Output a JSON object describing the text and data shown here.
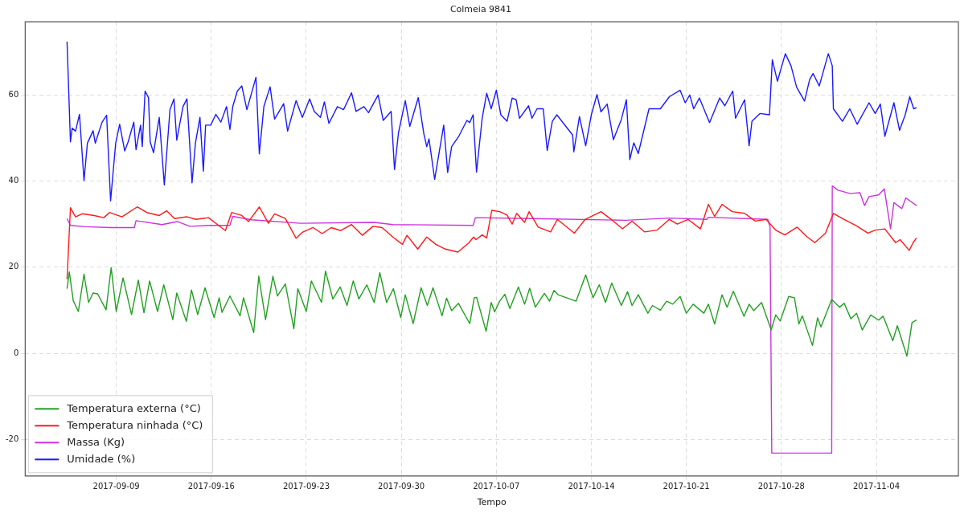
{
  "chart_data": {
    "type": "line",
    "title": "Colmeia 9841",
    "xlabel": "Tempo",
    "xlim": [
      "2017-09-02T07:00",
      "2017-11-10T01:00"
    ],
    "ylim": [
      -28.5,
      77
    ],
    "xticks": [
      "2017-09-09",
      "2017-09-16",
      "2017-09-23",
      "2017-09-30",
      "2017-10-07",
      "2017-10-14",
      "2017-10-21",
      "2017-10-28",
      "2017-11-04"
    ],
    "yticks": [
      -20,
      0,
      20,
      40,
      60
    ],
    "grid": true,
    "legend": "bottom left",
    "marker": "none",
    "line_style": "solid",
    "series": [
      {
        "name": "Temperatura externa (°C)",
        "color": "#22a022",
        "x": [
          "2017-09-05T09:00",
          "2017-09-05T13:00",
          "2017-09-05T20:00",
          "2017-09-06T05:00",
          "2017-09-06T15:00",
          "2017-09-06T23:00",
          "2017-09-07T07:00",
          "2017-09-07T15:00",
          "2017-09-08T06:00",
          "2017-09-08T15:00",
          "2017-09-09T00:00",
          "2017-09-09T12:00",
          "2017-09-10T03:00",
          "2017-09-10T15:00",
          "2017-09-11T01:00",
          "2017-09-11T11:00",
          "2017-09-12T01:00",
          "2017-09-12T12:00",
          "2017-09-13T04:00",
          "2017-09-13T11:00",
          "2017-09-14T04:00",
          "2017-09-14T13:00",
          "2017-09-15T00:00",
          "2017-09-15T13:00",
          "2017-09-16T05:00",
          "2017-09-16T14:00",
          "2017-09-16T19:00",
          "2017-09-17T09:00",
          "2017-09-18T03:00",
          "2017-09-18T09:00",
          "2017-09-19T03:00",
          "2017-09-19T12:00",
          "2017-09-20T00:00",
          "2017-09-20T13:00",
          "2017-09-20T21:00",
          "2017-09-21T11:00",
          "2017-09-22T02:00",
          "2017-09-22T09:00",
          "2017-09-23T00:00",
          "2017-09-23T09:00",
          "2017-09-24T03:00",
          "2017-09-24T10:00",
          "2017-09-24T23:00",
          "2017-09-25T12:00",
          "2017-09-26T00:00",
          "2017-09-26T11:00",
          "2017-09-26T21:00",
          "2017-09-27T11:00",
          "2017-09-28T00:00",
          "2017-09-28T10:00",
          "2017-09-28T22:00",
          "2017-09-29T10:00",
          "2017-09-29T23:00",
          "2017-09-30T07:00",
          "2017-09-30T21:00",
          "2017-10-01T11:00",
          "2017-10-01T22:00",
          "2017-10-02T08:00",
          "2017-10-03T00:00",
          "2017-10-03T08:00",
          "2017-10-03T17:00",
          "2017-10-04T05:00",
          "2017-10-05T01:00",
          "2017-10-05T09:00",
          "2017-10-05T13:00",
          "2017-10-06T06:00",
          "2017-10-06T15:00",
          "2017-10-06T21:00",
          "2017-10-07T06:00",
          "2017-10-07T15:00",
          "2017-10-08T00:00",
          "2017-10-08T15:00",
          "2017-10-09T02:00",
          "2017-10-09T11:00",
          "2017-10-09T21:00",
          "2017-10-10T13:00",
          "2017-10-10T22:00",
          "2017-10-11T06:00",
          "2017-10-11T13:00",
          "2017-10-12T21:00",
          "2017-10-13T14:00",
          "2017-10-14T03:00",
          "2017-10-14T14:00",
          "2017-10-15T01:00",
          "2017-10-15T12:00",
          "2017-10-16T05:00",
          "2017-10-16T16:00",
          "2017-10-17T00:00",
          "2017-10-17T11:00",
          "2017-10-18T04:00",
          "2017-10-18T12:00",
          "2017-10-19T02:00",
          "2017-10-19T13:00",
          "2017-10-20T00:00",
          "2017-10-20T13:00",
          "2017-10-21T00:00",
          "2017-10-21T12:00",
          "2017-10-22T07:00",
          "2017-10-22T15:00",
          "2017-10-23T02:00",
          "2017-10-23T15:00",
          "2017-10-24T00:00",
          "2017-10-24T11:00",
          "2017-10-25T06:00",
          "2017-10-25T15:00",
          "2017-10-25T23:00",
          "2017-10-26T13:00",
          "2017-10-27T06:00",
          "2017-10-27T14:00",
          "2017-10-27T22:00",
          "2017-10-28T13:00",
          "2017-10-28T23:00",
          "2017-10-29T07:00",
          "2017-10-29T13:00",
          "2017-10-30T07:00",
          "2017-10-30T16:00",
          "2017-10-30T22:00",
          "2017-10-31T17:00",
          "2017-11-01T07:00",
          "2017-11-01T15:00",
          "2017-11-02T03:00",
          "2017-11-02T13:00",
          "2017-11-02T23:00",
          "2017-11-03T14:00",
          "2017-11-04T04:00",
          "2017-11-04T12:00",
          "2017-11-05T05:00",
          "2017-11-05T13:00",
          "2017-11-06T06:00",
          "2017-11-06T15:00",
          "2017-11-06T23:00"
        ],
        "values": [
          15.0,
          18.9,
          12.2,
          9.7,
          18.4,
          11.8,
          14.0,
          13.8,
          10.1,
          19.9,
          9.7,
          17.5,
          9.0,
          17.0,
          9.4,
          16.8,
          9.7,
          15.9,
          7.8,
          14.0,
          7.4,
          14.7,
          9.0,
          15.2,
          8.3,
          12.9,
          9.5,
          13.3,
          8.7,
          12.9,
          4.8,
          17.9,
          7.8,
          17.9,
          13.3,
          16.1,
          5.7,
          15.0,
          9.7,
          16.8,
          11.8,
          19.1,
          12.6,
          15.4,
          11.1,
          16.8,
          12.6,
          15.9,
          11.8,
          18.7,
          11.8,
          15.0,
          8.3,
          13.6,
          6.9,
          15.2,
          11.1,
          15.2,
          8.7,
          12.8,
          9.9,
          11.6,
          6.9,
          12.9,
          13.0,
          5.1,
          11.8,
          9.6,
          12.1,
          13.7,
          10.4,
          15.4,
          11.4,
          15.1,
          10.7,
          13.9,
          12.1,
          14.6,
          13.6,
          12.1,
          18.2,
          12.9,
          15.9,
          11.8,
          16.3,
          11.1,
          14.3,
          11.1,
          13.6,
          9.3,
          11.1,
          10.0,
          12.1,
          11.4,
          13.2,
          9.3,
          11.4,
          9.3,
          11.4,
          6.8,
          13.6,
          10.7,
          14.4,
          8.6,
          11.4,
          9.9,
          11.8,
          5.4,
          8.9,
          7.5,
          13.2,
          12.9,
          6.8,
          8.7,
          1.8,
          8.2,
          6.1,
          12.5,
          10.7,
          11.6,
          8.0,
          9.3,
          5.4,
          8.9,
          7.7,
          8.6,
          2.9,
          6.4,
          -0.7,
          7.1,
          7.7
        ]
      },
      {
        "name": "Temperatura ninhada (°C)",
        "color": "#ff1a1a",
        "x": [
          "2017-09-05T09:00",
          "2017-09-05T15:00",
          "2017-09-06T00:00",
          "2017-09-06T12:00",
          "2017-09-07T09:00",
          "2017-09-08T02:00",
          "2017-09-08T12:00",
          "2017-09-09T10:00",
          "2017-09-10T13:00",
          "2017-09-11T06:00",
          "2017-09-12T04:00",
          "2017-09-12T17:00",
          "2017-09-13T07:00",
          "2017-09-14T05:00",
          "2017-09-14T21:00",
          "2017-09-15T19:00",
          "2017-09-16T11:00",
          "2017-09-17T01:00",
          "2017-09-17T12:00",
          "2017-09-18T06:00",
          "2017-09-18T18:00",
          "2017-09-19T13:00",
          "2017-09-20T05:00",
          "2017-09-20T16:00",
          "2017-09-21T11:00",
          "2017-09-22T06:00",
          "2017-09-22T17:00",
          "2017-09-23T12:00",
          "2017-09-24T04:00",
          "2017-09-24T20:00",
          "2017-09-25T13:00",
          "2017-09-26T08:00",
          "2017-09-27T03:00",
          "2017-09-27T22:00",
          "2017-09-28T14:00",
          "2017-09-29T09:00",
          "2017-09-30T02:00",
          "2017-09-30T10:00",
          "2017-10-01T05:00",
          "2017-10-01T21:00",
          "2017-10-02T13:00",
          "2017-10-03T06:00",
          "2017-10-04T04:00",
          "2017-10-04T23:00",
          "2017-10-05T08:00",
          "2017-10-05T12:00",
          "2017-10-05T23:00",
          "2017-10-06T07:00",
          "2017-10-06T16:00",
          "2017-10-07T06:00",
          "2017-10-07T19:00",
          "2017-10-08T04:00",
          "2017-10-08T12:00",
          "2017-10-09T02:00",
          "2017-10-09T10:00",
          "2017-10-10T02:00",
          "2017-10-11T00:00",
          "2017-10-11T12:00",
          "2017-10-12T18:00",
          "2017-10-13T13:00",
          "2017-10-14T17:00",
          "2017-10-15T15:00",
          "2017-10-16T07:00",
          "2017-10-17T00:00",
          "2017-10-17T22:00",
          "2017-10-18T20:00",
          "2017-10-19T18:00",
          "2017-10-20T08:00",
          "2017-10-21T03:00",
          "2017-10-22T01:00",
          "2017-10-22T15:00",
          "2017-10-23T02:00",
          "2017-10-23T15:00",
          "2017-10-24T09:00",
          "2017-10-25T07:00",
          "2017-10-26T02:00",
          "2017-10-26T21:00",
          "2017-10-27T14:00",
          "2017-10-28T06:00",
          "2017-10-29T04:00",
          "2017-10-29T21:00",
          "2017-10-30T11:00",
          "2017-10-31T06:00",
          "2017-10-31T20:00",
          "2017-11-01T15:00",
          "2017-11-02T13:00",
          "2017-11-03T09:00",
          "2017-11-03T22:00",
          "2017-11-04T15:00",
          "2017-11-05T10:00",
          "2017-11-05T18:00",
          "2017-11-06T10:00",
          "2017-11-06T17:00",
          "2017-11-06T23:00"
        ],
        "values": [
          17.2,
          33.8,
          31.7,
          32.4,
          32.0,
          31.5,
          32.7,
          31.7,
          34.0,
          32.7,
          32.0,
          33.1,
          31.3,
          31.7,
          31.1,
          31.5,
          29.9,
          28.5,
          32.7,
          32.0,
          30.6,
          34.0,
          30.2,
          32.4,
          31.3,
          26.7,
          28.1,
          29.2,
          27.8,
          29.2,
          28.5,
          29.9,
          27.4,
          29.5,
          29.2,
          27.0,
          25.3,
          27.4,
          24.2,
          27.0,
          25.3,
          24.2,
          23.5,
          25.6,
          27.0,
          26.4,
          27.5,
          26.8,
          33.2,
          32.9,
          32.1,
          30.0,
          32.5,
          30.4,
          32.9,
          29.3,
          28.2,
          31.1,
          27.9,
          31.1,
          32.9,
          30.7,
          28.9,
          30.7,
          28.2,
          28.6,
          31.1,
          30.0,
          31.1,
          28.9,
          34.6,
          31.8,
          34.6,
          32.9,
          32.5,
          30.7,
          31.1,
          28.6,
          27.5,
          29.3,
          27.1,
          25.7,
          27.9,
          32.5,
          31.1,
          29.6,
          27.9,
          28.6,
          28.9,
          25.7,
          26.4,
          23.9,
          25.7,
          26.8
        ]
      },
      {
        "name": "Massa (Kg)",
        "color": "#cc33dd",
        "x": [
          "2017-09-05T09:00",
          "2017-09-05T15:00",
          "2017-09-06T17:00",
          "2017-09-08T15:00",
          "2017-09-10T08:00",
          "2017-09-10T11:00",
          "2017-09-12T09:00",
          "2017-09-13T12:00",
          "2017-09-14T10:00",
          "2017-09-15T19:00",
          "2017-09-17T09:00",
          "2017-09-17T14:00",
          "2017-09-18T23:00",
          "2017-09-22T14:00",
          "2017-09-28T00:00",
          "2017-09-29T09:00",
          "2017-10-05T07:00",
          "2017-10-05T11:00",
          "2017-10-09T15:00",
          "2017-10-16T13:00",
          "2017-10-19T18:00",
          "2017-10-22T12:00",
          "2017-10-22T15:00",
          "2017-10-27T00:00",
          "2017-10-27T04:00",
          "2017-10-27T07:00",
          "2017-10-31T17:00",
          "2017-10-31T18:00",
          "2017-11-01T04:00",
          "2017-11-02T02:00",
          "2017-11-02T19:00",
          "2017-11-03T03:00",
          "2017-11-03T11:00",
          "2017-11-04T04:00",
          "2017-11-04T14:00",
          "2017-11-05T01:00",
          "2017-11-05T07:00",
          "2017-11-05T21:00",
          "2017-11-06T04:00",
          "2017-11-06T23:00"
        ],
        "values": [
          31.3,
          29.7,
          29.4,
          29.2,
          29.2,
          30.8,
          29.9,
          30.6,
          29.5,
          29.7,
          29.7,
          31.8,
          31.0,
          30.2,
          30.4,
          29.9,
          29.7,
          31.5,
          31.3,
          30.9,
          31.4,
          31.1,
          31.6,
          31.1,
          29.3,
          -23.2,
          -23.2,
          38.9,
          37.9,
          37.1,
          37.3,
          34.3,
          36.4,
          36.8,
          38.2,
          28.9,
          35.0,
          33.6,
          36.1,
          34.3
        ]
      },
      {
        "name": "Umidade (%)",
        "color": "#1a1aff",
        "x": [
          "2017-09-05T09:00",
          "2017-09-05T15:00",
          "2017-09-05T18:00",
          "2017-09-06T00:00",
          "2017-09-06T07:00",
          "2017-09-06T15:00",
          "2017-09-06T21:00",
          "2017-09-07T07:00",
          "2017-09-07T11:00",
          "2017-09-07T15:00",
          "2017-09-07T23:00",
          "2017-09-08T07:00",
          "2017-09-08T14:00",
          "2017-09-08T23:00",
          "2017-09-09T06:00",
          "2017-09-09T15:00",
          "2017-09-09T21:00",
          "2017-09-10T07:00",
          "2017-09-10T11:00",
          "2017-09-10T19:00",
          "2017-09-10T22:00",
          "2017-09-11T03:00",
          "2017-09-11T09:00",
          "2017-09-11T12:00",
          "2017-09-11T18:00",
          "2017-09-12T04:00",
          "2017-09-12T13:00",
          "2017-09-12T23:00",
          "2017-09-13T06:00",
          "2017-09-13T11:00",
          "2017-09-13T22:00",
          "2017-09-14T05:00",
          "2017-09-14T14:00",
          "2017-09-14T20:00",
          "2017-09-15T04:00",
          "2017-09-15T10:00",
          "2017-09-15T14:00",
          "2017-09-15T23:00",
          "2017-09-16T08:00",
          "2017-09-16T17:00",
          "2017-09-17T03:00",
          "2017-09-17T09:00",
          "2017-09-17T14:00",
          "2017-09-17T22:00",
          "2017-09-18T06:00",
          "2017-09-18T15:00",
          "2017-09-19T07:00",
          "2017-09-19T13:00",
          "2017-09-19T21:00",
          "2017-09-20T08:00",
          "2017-09-20T16:00",
          "2017-09-21T08:00",
          "2017-09-21T15:00",
          "2017-09-22T06:00",
          "2017-09-22T17:00",
          "2017-09-23T06:00",
          "2017-09-23T14:00",
          "2017-09-24T01:00",
          "2017-09-24T08:00",
          "2017-09-24T16:00",
          "2017-09-25T07:00",
          "2017-09-25T18:00",
          "2017-09-26T08:00",
          "2017-09-26T16:00",
          "2017-09-27T06:00",
          "2017-09-27T14:00",
          "2017-09-28T07:00",
          "2017-09-28T16:00",
          "2017-09-29T06:00",
          "2017-09-29T12:00",
          "2017-09-29T19:00",
          "2017-09-30T07:00",
          "2017-09-30T15:00",
          "2017-10-01T06:00",
          "2017-10-01T16:00",
          "2017-10-01T21:00",
          "2017-10-02T01:00",
          "2017-10-02T11:00",
          "2017-10-03T03:00",
          "2017-10-03T10:00",
          "2017-10-03T17:00",
          "2017-10-04T06:00",
          "2017-10-04T20:00",
          "2017-10-05T01:00",
          "2017-10-05T07:00",
          "2017-10-05T13:00",
          "2017-10-05T23:00",
          "2017-10-06T07:00",
          "2017-10-06T15:00",
          "2017-10-07T00:00",
          "2017-10-07T08:00",
          "2017-10-07T19:00",
          "2017-10-08T04:00",
          "2017-10-08T11:00",
          "2017-10-08T17:00",
          "2017-10-09T09:00",
          "2017-10-09T15:00",
          "2017-10-10T00:00",
          "2017-10-10T11:00",
          "2017-10-10T18:00",
          "2017-10-11T03:00",
          "2017-10-11T11:00",
          "2017-10-12T15:00",
          "2017-10-12T17:00",
          "2017-10-13T03:00",
          "2017-10-13T14:00",
          "2017-10-14T00:00",
          "2017-10-14T10:00",
          "2017-10-14T17:00",
          "2017-10-15T04:00",
          "2017-10-15T15:00",
          "2017-10-16T05:00",
          "2017-10-16T14:00",
          "2017-10-16T20:00",
          "2017-10-17T03:00",
          "2017-10-17T11:00",
          "2017-10-18T06:00",
          "2017-10-19T02:00",
          "2017-10-19T18:00",
          "2017-10-20T13:00",
          "2017-10-20T22:00",
          "2017-10-21T06:00",
          "2017-10-21T13:00",
          "2017-10-21T23:00",
          "2017-10-22T17:00",
          "2017-10-23T11:00",
          "2017-10-23T20:00",
          "2017-10-24T10:00",
          "2017-10-24T15:00",
          "2017-10-25T07:00",
          "2017-10-25T15:00",
          "2017-10-25T20:00",
          "2017-10-26T10:00",
          "2017-10-27T03:00",
          "2017-10-27T08:00",
          "2017-10-27T17:00",
          "2017-10-28T07:00",
          "2017-10-28T17:00",
          "2017-10-29T03:00",
          "2017-10-29T17:00",
          "2017-10-30T02:00",
          "2017-10-30T08:00",
          "2017-10-30T19:00",
          "2017-10-31T11:00",
          "2017-10-31T18:00",
          "2017-10-31T20:00",
          "2017-11-01T12:00",
          "2017-11-02T01:00",
          "2017-11-02T14:00",
          "2017-11-03T11:00",
          "2017-11-03T22:00",
          "2017-11-04T07:00",
          "2017-11-04T15:00",
          "2017-11-05T07:00",
          "2017-11-05T17:00",
          "2017-11-06T03:00",
          "2017-11-06T11:00",
          "2017-11-06T18:00",
          "2017-11-06T23:00"
        ],
        "values": [
          72.4,
          49.1,
          52.3,
          51.6,
          55.5,
          40.1,
          48.8,
          51.7,
          48.8,
          50.5,
          53.7,
          55.3,
          35.4,
          48.8,
          53.2,
          47.0,
          49.1,
          53.7,
          47.3,
          53.0,
          48.0,
          60.9,
          59.4,
          49.1,
          46.6,
          54.8,
          39.1,
          56.6,
          59.1,
          49.5,
          57.3,
          59.1,
          39.6,
          48.8,
          54.8,
          42.3,
          53.0,
          53.0,
          55.5,
          53.7,
          57.3,
          52.0,
          57.3,
          60.9,
          62.1,
          56.6,
          64.1,
          46.3,
          57.3,
          61.9,
          54.4,
          58.0,
          51.6,
          58.7,
          54.8,
          59.1,
          56.2,
          54.8,
          58.4,
          53.4,
          57.3,
          56.6,
          60.5,
          56.2,
          57.3,
          55.9,
          60.0,
          54.1,
          56.2,
          42.7,
          51.2,
          58.7,
          52.7,
          59.4,
          50.9,
          48.0,
          49.8,
          40.4,
          53.0,
          42.0,
          48.0,
          50.5,
          54.1,
          53.6,
          55.4,
          42.1,
          54.6,
          60.4,
          56.8,
          61.1,
          55.4,
          53.9,
          59.3,
          58.9,
          54.6,
          57.5,
          54.6,
          56.8,
          56.8,
          47.1,
          53.9,
          55.4,
          50.7,
          46.8,
          55.0,
          48.2,
          55.4,
          60.1,
          56.1,
          57.9,
          49.6,
          54.3,
          58.9,
          45.0,
          48.9,
          46.4,
          56.8,
          56.8,
          59.6,
          61.1,
          58.2,
          60.0,
          56.8,
          59.3,
          53.6,
          59.3,
          57.5,
          60.9,
          54.6,
          58.9,
          48.2,
          53.9,
          55.7,
          55.4,
          68.2,
          63.2,
          69.6,
          66.8,
          61.8,
          58.6,
          63.6,
          65.0,
          62.1,
          69.6,
          66.8,
          56.8,
          53.9,
          56.8,
          53.2,
          58.2,
          55.7,
          57.9,
          50.4,
          58.2,
          51.8,
          55.4,
          59.6,
          56.8,
          57.1
        ]
      }
    ]
  }
}
